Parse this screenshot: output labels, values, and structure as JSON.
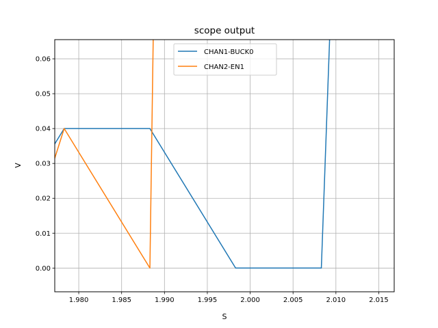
{
  "chart_data": {
    "type": "line",
    "title": "scope output",
    "xlabel": "S",
    "ylabel": "V",
    "xlim": [
      1.9772,
      2.0168
    ],
    "ylim": [
      -0.0068,
      0.0655
    ],
    "grid": true,
    "legend_position": "upper center",
    "xticks": [
      1.98,
      1.985,
      1.99,
      1.995,
      2.0,
      2.005,
      2.01,
      2.015
    ],
    "xtick_labels": [
      "1.980",
      "1.985",
      "1.990",
      "1.995",
      "2.000",
      "2.005",
      "2.010",
      "2.015"
    ],
    "yticks": [
      0.0,
      0.01,
      0.02,
      0.03,
      0.04,
      0.05,
      0.06
    ],
    "ytick_labels": [
      "0.00",
      "0.01",
      "0.02",
      "0.03",
      "0.04",
      "0.05",
      "0.06"
    ],
    "series": [
      {
        "name": "CHAN1-BUCK0",
        "color": "#1f77b4",
        "x": [
          1.9772,
          1.9783,
          1.9883,
          1.9983,
          2.0083,
          2.0093
        ],
        "y": [
          0.0356,
          0.04,
          0.04,
          0.0,
          0.0,
          0.068
        ]
      },
      {
        "name": "CHAN2-EN1",
        "color": "#ff7f0e",
        "x": [
          1.9772,
          1.9783,
          1.9883,
          1.9887
        ],
        "y": [
          0.0315,
          0.04,
          0.0,
          0.068
        ]
      }
    ]
  }
}
